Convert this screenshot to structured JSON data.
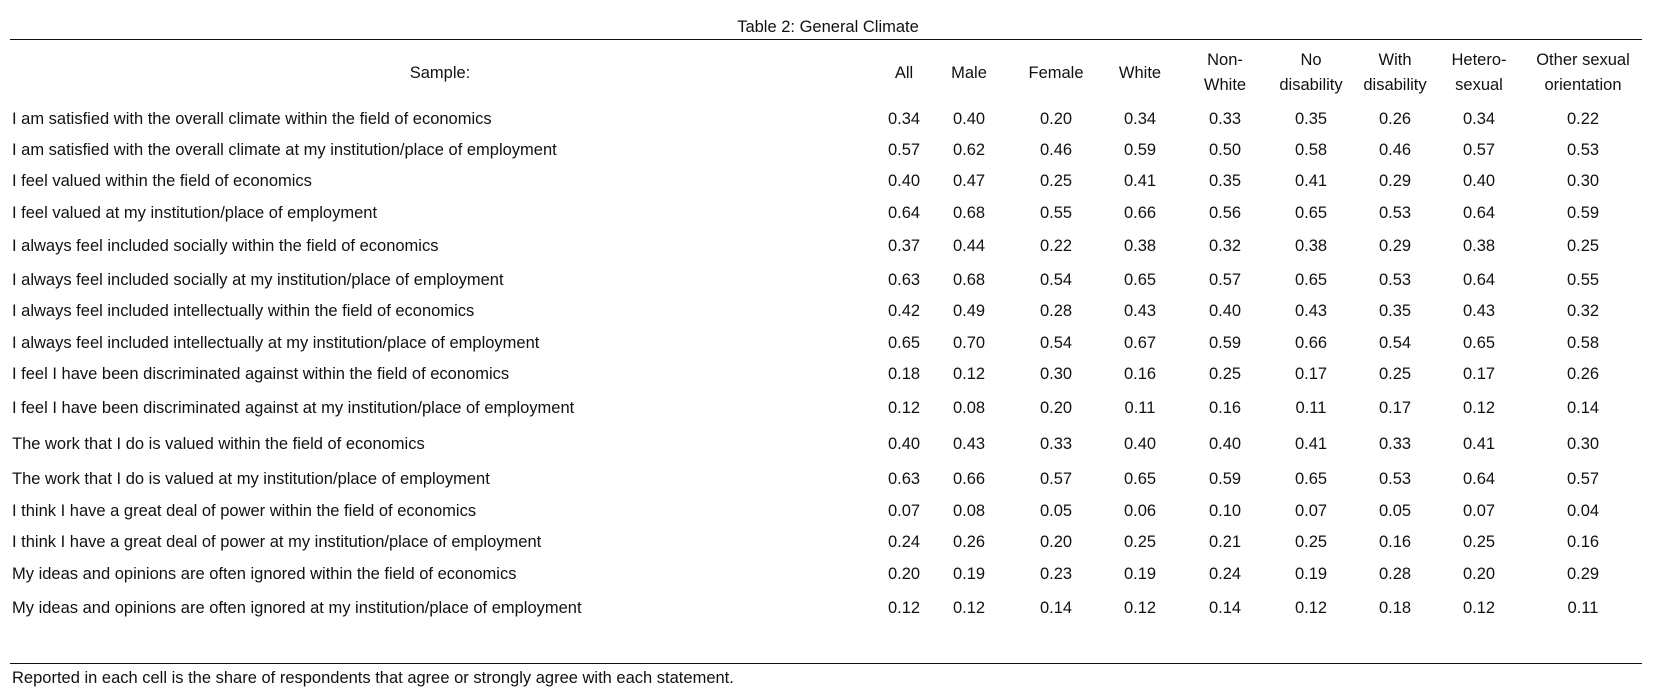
{
  "table": {
    "title": "Table 2: General Climate",
    "sample_label": "Sample:",
    "columns": [
      "All",
      "Male",
      "Female",
      "White",
      "Non-\nWhite",
      "No\ndisability",
      "With\ndisability",
      "Hetero-\nsexual",
      "Other sexual\norientation"
    ],
    "rows": [
      {
        "label": "I am satisfied with the overall climate within the field of economics",
        "values": [
          "0.34",
          "0.40",
          "0.20",
          "0.34",
          "0.33",
          "0.35",
          "0.26",
          "0.34",
          "0.22"
        ]
      },
      {
        "label": "I am satisfied with the overall climate at my institution/place of employment",
        "values": [
          "0.57",
          "0.62",
          "0.46",
          "0.59",
          "0.50",
          "0.58",
          "0.46",
          "0.57",
          "0.53"
        ]
      },
      {
        "label": "I feel valued within the field of economics",
        "values": [
          "0.40",
          "0.47",
          "0.25",
          "0.41",
          "0.35",
          "0.41",
          "0.29",
          "0.40",
          "0.30"
        ]
      },
      {
        "label": "I feel valued at my institution/place of employment",
        "values": [
          "0.64",
          "0.68",
          "0.55",
          "0.66",
          "0.56",
          "0.65",
          "0.53",
          "0.64",
          "0.59"
        ]
      },
      {
        "label": "I always feel included socially within the field of economics",
        "values": [
          "0.37",
          "0.44",
          "0.22",
          "0.38",
          "0.32",
          "0.38",
          "0.29",
          "0.38",
          "0.25"
        ]
      },
      {
        "label": "I always feel included socially at my institution/place of employment",
        "values": [
          "0.63",
          "0.68",
          "0.54",
          "0.65",
          "0.57",
          "0.65",
          "0.53",
          "0.64",
          "0.55"
        ]
      },
      {
        "label": "I always feel included intellectually within the field of economics",
        "values": [
          "0.42",
          "0.49",
          "0.28",
          "0.43",
          "0.40",
          "0.43",
          "0.35",
          "0.43",
          "0.32"
        ]
      },
      {
        "label": "I always feel included intellectually at my institution/place of employment",
        "values": [
          "0.65",
          "0.70",
          "0.54",
          "0.67",
          "0.59",
          "0.66",
          "0.54",
          "0.65",
          "0.58"
        ]
      },
      {
        "label": "I feel I have been discriminated against within the field of economics",
        "values": [
          "0.18",
          "0.12",
          "0.30",
          "0.16",
          "0.25",
          "0.17",
          "0.25",
          "0.17",
          "0.26"
        ]
      },
      {
        "label": "I feel I have been discriminated against at my institution/place of employment",
        "values": [
          "0.12",
          "0.08",
          "0.20",
          "0.11",
          "0.16",
          "0.11",
          "0.17",
          "0.12",
          "0.14"
        ]
      },
      {
        "label": "The work that I do is valued within the field of economics",
        "values": [
          "0.40",
          "0.43",
          "0.33",
          "0.40",
          "0.40",
          "0.41",
          "0.33",
          "0.41",
          "0.30"
        ]
      },
      {
        "label": "The work that I do is valued at my institution/place of employment",
        "values": [
          "0.63",
          "0.66",
          "0.57",
          "0.65",
          "0.59",
          "0.65",
          "0.53",
          "0.64",
          "0.57"
        ]
      },
      {
        "label": "I think I have a great deal of power within the field of economics",
        "values": [
          "0.07",
          "0.08",
          "0.05",
          "0.06",
          "0.10",
          "0.07",
          "0.05",
          "0.07",
          "0.04"
        ]
      },
      {
        "label": "I think I have a great deal of power at my institution/place of employment",
        "values": [
          "0.24",
          "0.26",
          "0.20",
          "0.25",
          "0.21",
          "0.25",
          "0.16",
          "0.25",
          "0.16"
        ]
      },
      {
        "label": "My ideas and opinions are often ignored within the field of economics",
        "values": [
          "0.20",
          "0.19",
          "0.23",
          "0.19",
          "0.24",
          "0.19",
          "0.28",
          "0.20",
          "0.29"
        ]
      },
      {
        "label": "My ideas and opinions are often ignored at my institution/place of employment",
        "values": [
          "0.12",
          "0.12",
          "0.14",
          "0.12",
          "0.14",
          "0.12",
          "0.18",
          "0.12",
          "0.11"
        ]
      }
    ],
    "note": "Reported in each cell is the share of respondents that agree or strongly agree with each statement."
  }
}
